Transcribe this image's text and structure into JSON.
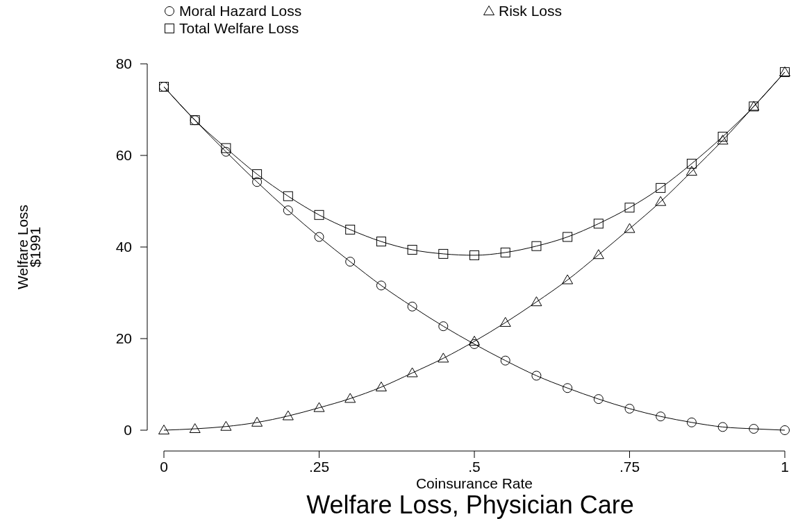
{
  "chart_data": {
    "type": "line",
    "title": "Welfare Loss, Physician Care",
    "xlabel": "Coinsurance Rate",
    "ylabel": "Welfare Loss\n$1991",
    "x": [
      0,
      0.05,
      0.1,
      0.15,
      0.2,
      0.25,
      0.3,
      0.35,
      0.4,
      0.45,
      0.5,
      0.55,
      0.6,
      0.65,
      0.7,
      0.75,
      0.8,
      0.85,
      0.9,
      0.95,
      1
    ],
    "series": [
      {
        "name": "Moral Hazard Loss",
        "color": "#000000",
        "marker": "circle",
        "values": [
          75.0,
          67.7,
          60.8,
          54.2,
          48.0,
          42.2,
          36.8,
          31.6,
          27.0,
          22.7,
          18.8,
          15.2,
          11.9,
          9.2,
          6.8,
          4.7,
          3.0,
          1.7,
          0.7,
          0.3,
          0
        ]
      },
      {
        "name": "Risk Loss",
        "color": "#000000",
        "marker": "triangle",
        "values": [
          0,
          0.3,
          0.8,
          1.7,
          3.1,
          4.9,
          6.9,
          9.4,
          12.5,
          15.7,
          19.4,
          23.5,
          28.0,
          32.8,
          38.3,
          44.0,
          49.9,
          56.5,
          63.3,
          70.7,
          78.2
        ]
      },
      {
        "name": "Total Welfare Loss",
        "color": "#000000",
        "marker": "square",
        "values": [
          75.0,
          67.7,
          61.6,
          55.9,
          51.1,
          47.0,
          43.8,
          41.2,
          39.4,
          38.5,
          38.2,
          38.8,
          40.2,
          42.2,
          45.1,
          48.6,
          52.9,
          58.2,
          64.1,
          70.7,
          78.2
        ]
      }
    ],
    "xlim": [
      0,
      1
    ],
    "xticks": [
      0,
      {
        "value": 0.25,
        "label": ".25"
      },
      {
        "value": 0.5,
        "label": ".5"
      },
      {
        "value": 0.75,
        "label": ".75"
      },
      1
    ],
    "ylim": [
      0,
      80
    ],
    "yticks": [
      0,
      20,
      40,
      60,
      80
    ],
    "grid": false,
    "legend": "top",
    "line_style": "solid"
  }
}
